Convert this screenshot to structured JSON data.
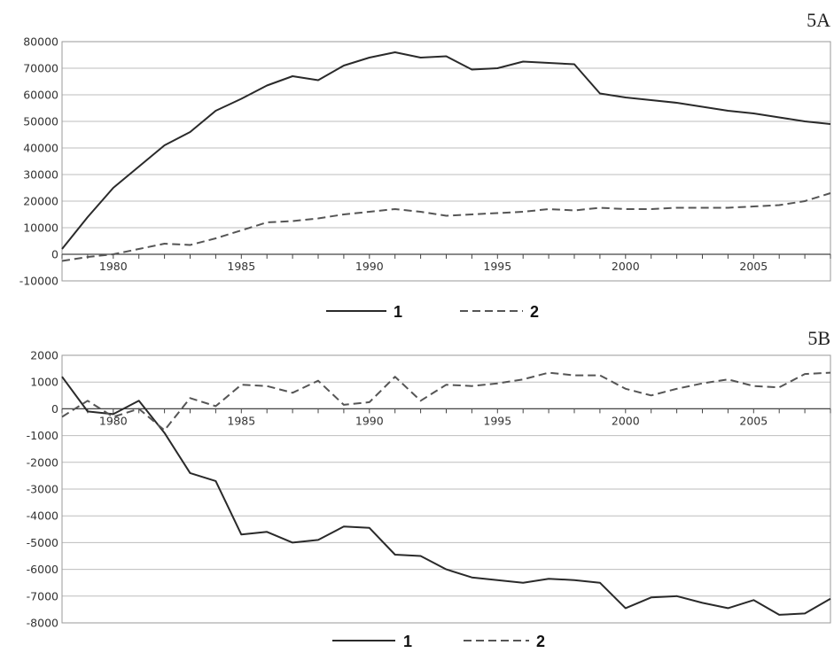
{
  "chart_data": [
    {
      "type": "line",
      "panel_label": "5A",
      "x": [
        1978,
        1979,
        1980,
        1981,
        1982,
        1983,
        1984,
        1985,
        1986,
        1987,
        1988,
        1989,
        1990,
        1991,
        1992,
        1993,
        1994,
        1995,
        1996,
        1997,
        1998,
        1999,
        2000,
        2001,
        2002,
        2003,
        2004,
        2005,
        2006,
        2007,
        2008
      ],
      "x_ticks": [
        1980,
        1985,
        1990,
        1995,
        2000,
        2005
      ],
      "ylim": [
        -10000,
        80000
      ],
      "y_ticks": [
        -10000,
        0,
        10000,
        20000,
        30000,
        40000,
        50000,
        60000,
        70000,
        80000
      ],
      "grid": true,
      "legend_position": "bottom-center",
      "series": [
        {
          "name": "1",
          "style": "solid",
          "values": [
            2000,
            14000,
            25000,
            33000,
            41000,
            46000,
            54000,
            58500,
            63500,
            67000,
            65500,
            71000,
            74000,
            76000,
            74000,
            74500,
            69500,
            70000,
            72500,
            72000,
            71500,
            60500,
            59000,
            58000,
            57000,
            55500,
            54000,
            53000,
            51500,
            50000,
            49000
          ]
        },
        {
          "name": "2",
          "style": "dashed",
          "values": [
            -2500,
            -1000,
            0,
            2000,
            4000,
            3500,
            6000,
            9000,
            12000,
            12500,
            13500,
            15000,
            16000,
            17000,
            16000,
            14500,
            15000,
            15500,
            16000,
            17000,
            16500,
            17500,
            17000,
            17000,
            17500,
            17500,
            17500,
            18000,
            18500,
            20000,
            23000
          ]
        }
      ]
    },
    {
      "type": "line",
      "panel_label": "5B",
      "x": [
        1978,
        1979,
        1980,
        1981,
        1982,
        1983,
        1984,
        1985,
        1986,
        1987,
        1988,
        1989,
        1990,
        1991,
        1992,
        1993,
        1994,
        1995,
        1996,
        1997,
        1998,
        1999,
        2000,
        2001,
        2002,
        2003,
        2004,
        2005,
        2006,
        2007,
        2008
      ],
      "x_ticks": [
        1980,
        1985,
        1990,
        1995,
        2000,
        2005
      ],
      "ylim": [
        -8000,
        2000
      ],
      "y_ticks": [
        -8000,
        -7000,
        -6000,
        -5000,
        -4000,
        -3000,
        -2000,
        -1000,
        0,
        1000,
        2000
      ],
      "grid": true,
      "legend_position": "bottom-center",
      "series": [
        {
          "name": "1",
          "style": "solid",
          "values": [
            1200,
            -100,
            -200,
            300,
            -900,
            -2400,
            -2700,
            -4700,
            -4600,
            -5000,
            -4900,
            -4400,
            -4450,
            -5450,
            -5500,
            -6000,
            -6300,
            -6400,
            -6500,
            -6350,
            -6400,
            -6500,
            -7450,
            -7050,
            -7000,
            -7250,
            -7450,
            -7150,
            -7700,
            -7650,
            -7100
          ]
        },
        {
          "name": "2",
          "style": "dashed",
          "values": [
            -300,
            300,
            -300,
            0,
            -800,
            400,
            100,
            900,
            850,
            600,
            1050,
            150,
            250,
            1200,
            300,
            900,
            850,
            950,
            1100,
            1350,
            1250,
            1250,
            750,
            500,
            750,
            950,
            1100,
            850,
            800,
            1300,
            1350
          ]
        }
      ]
    }
  ]
}
